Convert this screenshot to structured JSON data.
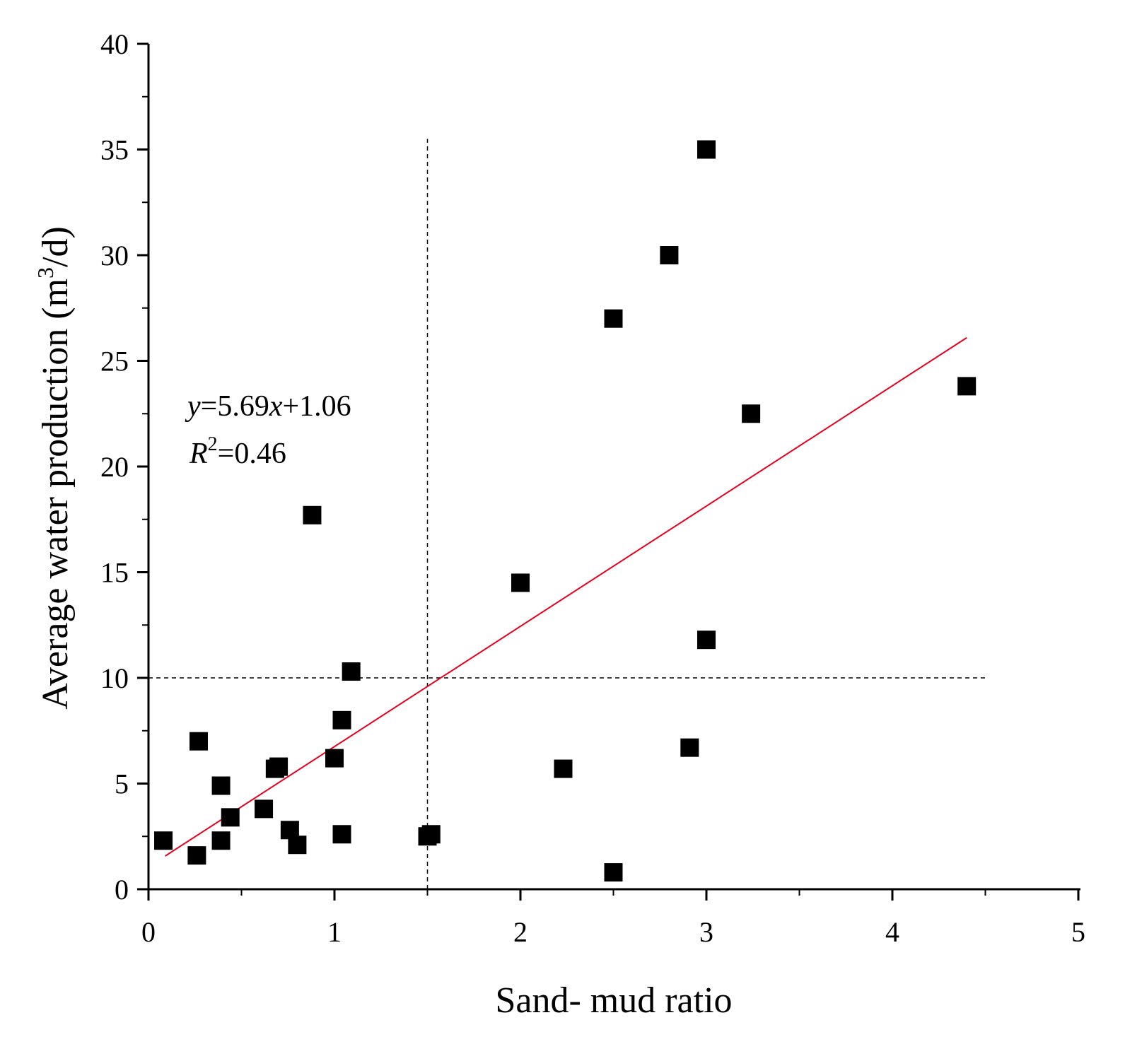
{
  "chart_data": {
    "type": "scatter",
    "title": "",
    "xlabel": "Sand- mud ratio",
    "ylabel": {
      "prefix": "Average water production (m",
      "superscript": "3",
      "suffix": "/d)"
    },
    "xlim": [
      0,
      5
    ],
    "ylim": [
      0,
      40
    ],
    "x_ticks": [
      "0",
      "1",
      "2",
      "3",
      "4",
      "5"
    ],
    "y_ticks": [
      "0",
      "5",
      "10",
      "15",
      "20",
      "25",
      "30",
      "35",
      "40"
    ],
    "marker": "square",
    "marker_color": "#000000",
    "points": [
      {
        "x": 0.08,
        "y": 2.3
      },
      {
        "x": 0.26,
        "y": 1.6
      },
      {
        "x": 0.27,
        "y": 7.0
      },
      {
        "x": 0.39,
        "y": 4.9
      },
      {
        "x": 0.39,
        "y": 2.3
      },
      {
        "x": 0.44,
        "y": 3.4
      },
      {
        "x": 0.62,
        "y": 3.8
      },
      {
        "x": 0.68,
        "y": 5.7
      },
      {
        "x": 0.7,
        "y": 5.8
      },
      {
        "x": 0.76,
        "y": 2.8
      },
      {
        "x": 0.8,
        "y": 2.1
      },
      {
        "x": 0.88,
        "y": 17.7
      },
      {
        "x": 1.0,
        "y": 6.2
      },
      {
        "x": 1.04,
        "y": 8.0
      },
      {
        "x": 1.04,
        "y": 2.6
      },
      {
        "x": 1.09,
        "y": 10.3
      },
      {
        "x": 1.5,
        "y": 2.5
      },
      {
        "x": 1.52,
        "y": 2.6
      },
      {
        "x": 2.0,
        "y": 14.5
      },
      {
        "x": 2.23,
        "y": 5.7
      },
      {
        "x": 2.5,
        "y": 0.8
      },
      {
        "x": 2.5,
        "y": 27.0
      },
      {
        "x": 2.8,
        "y": 30.0
      },
      {
        "x": 2.91,
        "y": 6.7
      },
      {
        "x": 3.0,
        "y": 35.0
      },
      {
        "x": 3.0,
        "y": 11.8
      },
      {
        "x": 3.24,
        "y": 22.5
      },
      {
        "x": 4.4,
        "y": 23.8
      }
    ],
    "fit_line": {
      "slope": 5.69,
      "intercept": 1.06,
      "x_range": [
        0.09,
        4.4
      ],
      "color": "#e8001c"
    },
    "reference_lines": [
      {
        "orientation": "vertical",
        "value": 1.5,
        "from": 0,
        "to": 35.5
      },
      {
        "orientation": "horizontal",
        "value": 10,
        "from": 0,
        "to": 4.5
      }
    ],
    "annotation": {
      "eq_y": "y",
      "eq_mid": "=5.69",
      "eq_x": "x",
      "eq_tail": "+1.06",
      "r_sym": "R",
      "r_sup": "2",
      "r_val": "=0.46"
    }
  }
}
